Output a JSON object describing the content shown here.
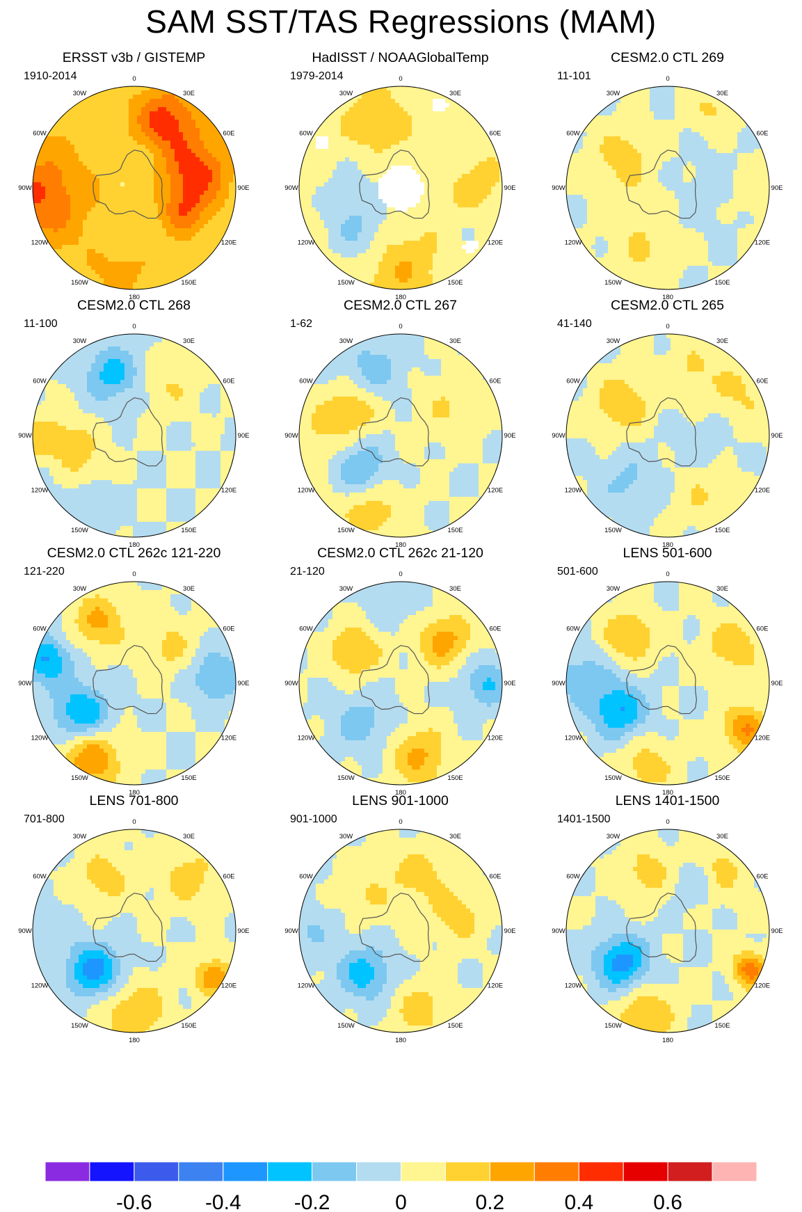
{
  "title": "SAM SST/TAS Regressions (MAM)",
  "chart_data": {
    "type": "heatmap",
    "projection": "south-polar-stereographic",
    "longitude_labels": [
      "0",
      "30E",
      "60E",
      "90E",
      "120E",
      "150E",
      "180",
      "150W",
      "120W",
      "90W",
      "60W",
      "30W"
    ],
    "colorbar": {
      "levels": [
        -0.7,
        -0.6,
        -0.5,
        -0.4,
        -0.3,
        -0.2,
        -0.1,
        0,
        0.1,
        0.2,
        0.3,
        0.4,
        0.5,
        0.6,
        0.7
      ],
      "tick_labels": [
        "-0.6",
        "-0.4",
        "-0.2",
        "0",
        "0.2",
        "0.4",
        "0.6"
      ],
      "colors": [
        "#8a2be2",
        "#1414ff",
        "#3c5aeb",
        "#3c82f0",
        "#1e96ff",
        "#00c3ff",
        "#7dc8f0",
        "#b4dcf0",
        "#fff591",
        "#ffd232",
        "#ffa500",
        "#ff7d00",
        "#ff2d00",
        "#e60000",
        "#d21e1e",
        "#ffb4b4"
      ]
    },
    "panels": [
      {
        "title": "ERSST v3b / GISTEMP",
        "period": "1910-2014",
        "base": 0.15,
        "blobs": [
          [
            0.62,
            75,
            0.3,
            0.1
          ],
          [
            0.72,
            25,
            0.3,
            0.09
          ],
          [
            0.95,
            265,
            0.25,
            0.22
          ],
          [
            0.55,
            115,
            0.2,
            0.05
          ],
          [
            0.85,
            190,
            0.1,
            0.05
          ],
          [
            0.2,
            0,
            -0.05,
            0.12
          ]
        ],
        "missing": []
      },
      {
        "title": "HadISST / NOAAGlobalTemp",
        "period": "1979-2014",
        "base": 0.05,
        "blobs": [
          [
            0.6,
            225,
            -0.15,
            0.1
          ],
          [
            0.5,
            270,
            -0.08,
            0.1
          ],
          [
            0.8,
            180,
            0.15,
            0.13
          ],
          [
            0.7,
            340,
            0.12,
            0.1
          ],
          [
            0.75,
            90,
            0.1,
            0.07
          ],
          [
            0.9,
            120,
            -0.05,
            0.06
          ]
        ],
        "missing": [
          [
            0,
            0,
            0.22
          ],
          [
            0.9,
            25,
            0.08
          ],
          [
            0.9,
            300,
            0.07
          ],
          [
            0.9,
            130,
            0.07
          ]
        ]
      },
      {
        "title": "CESM2.0 CTL 269",
        "period": "11-101",
        "base": 0.0,
        "blobs": [
          [
            0.55,
            305,
            0.15,
            0.08
          ],
          [
            0.7,
            200,
            0.1,
            0.08
          ],
          [
            0.9,
            90,
            0.1,
            0.08
          ],
          [
            0.9,
            30,
            0.12,
            0.05
          ],
          [
            0.5,
            90,
            -0.05,
            0.12
          ],
          [
            0.4,
            240,
            0.08,
            0.08
          ]
        ],
        "missing": []
      },
      {
        "title": "CESM2.0 CTL 268",
        "period": "11-100",
        "base": 0.0,
        "blobs": [
          [
            0.65,
            340,
            -0.25,
            0.07
          ],
          [
            0.7,
            250,
            0.2,
            0.1
          ],
          [
            0.85,
            250,
            -0.2,
            0.05
          ],
          [
            0.9,
            265,
            0.15,
            0.08
          ],
          [
            0.85,
            215,
            -0.12,
            0.08
          ],
          [
            0.6,
            35,
            0.1,
            0.07
          ]
        ],
        "missing": []
      },
      {
        "title": "CESM2.0 CTL 267",
        "period": "1-62",
        "base": 0.0,
        "blobs": [
          [
            0.7,
            335,
            -0.15,
            0.1
          ],
          [
            0.55,
            300,
            0.2,
            0.07
          ],
          [
            0.5,
            230,
            -0.22,
            0.06
          ],
          [
            0.8,
            200,
            0.15,
            0.1
          ],
          [
            0.55,
            60,
            0.1,
            0.1
          ],
          [
            0.85,
            270,
            0.1,
            0.08
          ]
        ],
        "missing": []
      },
      {
        "title": "CESM2.0 CTL 265",
        "period": "41-140",
        "base": 0.0,
        "blobs": [
          [
            0.55,
            305,
            0.2,
            0.07
          ],
          [
            0.9,
            60,
            0.12,
            0.12
          ],
          [
            0.6,
            220,
            -0.12,
            0.08
          ],
          [
            0.7,
            150,
            0.1,
            0.08
          ],
          [
            0.7,
            20,
            0.1,
            0.07
          ],
          [
            0.35,
            100,
            -0.05,
            0.1
          ]
        ],
        "missing": []
      },
      {
        "title": "CESM2.0 CTL 262c 121-220",
        "period": "121-220",
        "base": 0.0,
        "blobs": [
          [
            0.6,
            240,
            -0.3,
            0.08
          ],
          [
            0.85,
            210,
            0.3,
            0.08
          ],
          [
            0.7,
            330,
            0.22,
            0.07
          ],
          [
            0.9,
            285,
            -0.3,
            0.06
          ],
          [
            0.8,
            85,
            -0.22,
            0.06
          ],
          [
            0.5,
            45,
            0.12,
            0.08
          ]
        ],
        "missing": []
      },
      {
        "title": "CESM2.0 CTL 262c 21-120",
        "period": "21-120",
        "base": 0.0,
        "blobs": [
          [
            0.55,
            305,
            0.22,
            0.06
          ],
          [
            0.6,
            45,
            0.25,
            0.07
          ],
          [
            0.75,
            165,
            0.22,
            0.08
          ],
          [
            0.55,
            225,
            -0.15,
            0.08
          ],
          [
            0.85,
            90,
            -0.2,
            0.06
          ],
          [
            0.85,
            0,
            -0.08,
            0.1
          ]
        ],
        "missing": []
      },
      {
        "title": "LENS 501-600",
        "period": "501-600",
        "base": 0.0,
        "blobs": [
          [
            0.55,
            240,
            -0.3,
            0.07
          ],
          [
            0.6,
            320,
            0.2,
            0.07
          ],
          [
            0.75,
            60,
            0.18,
            0.07
          ],
          [
            0.85,
            195,
            0.15,
            0.08
          ],
          [
            0.9,
            120,
            0.3,
            0.05
          ],
          [
            0.85,
            275,
            -0.15,
            0.1
          ]
        ],
        "missing": []
      },
      {
        "title": "LENS 701-800",
        "period": "701-800",
        "base": 0.0,
        "blobs": [
          [
            0.55,
            225,
            -0.35,
            0.07
          ],
          [
            0.8,
            180,
            0.2,
            0.1
          ],
          [
            0.6,
            330,
            0.15,
            0.07
          ],
          [
            0.75,
            45,
            0.15,
            0.08
          ],
          [
            0.9,
            270,
            -0.1,
            0.08
          ],
          [
            0.9,
            120,
            0.3,
            0.03
          ]
        ],
        "missing": []
      },
      {
        "title": "LENS 901-1000",
        "period": "901-1000",
        "base": 0.0,
        "blobs": [
          [
            0.55,
            220,
            -0.25,
            0.07
          ],
          [
            0.6,
            20,
            0.15,
            0.08
          ],
          [
            0.8,
            165,
            0.15,
            0.08
          ],
          [
            0.6,
            75,
            0.15,
            0.07
          ],
          [
            0.9,
            270,
            -0.1,
            0.08
          ],
          [
            0.5,
            320,
            0.1,
            0.08
          ]
        ],
        "missing": []
      },
      {
        "title": "LENS 1401-1500",
        "period": "1401-1500",
        "base": 0.0,
        "blobs": [
          [
            0.55,
            235,
            -0.35,
            0.07
          ],
          [
            0.6,
            340,
            0.15,
            0.07
          ],
          [
            0.75,
            40,
            0.15,
            0.08
          ],
          [
            0.85,
            195,
            0.2,
            0.08
          ],
          [
            0.9,
            115,
            0.35,
            0.03
          ],
          [
            0.55,
            30,
            -0.15,
            0.05
          ]
        ],
        "missing": []
      }
    ]
  }
}
